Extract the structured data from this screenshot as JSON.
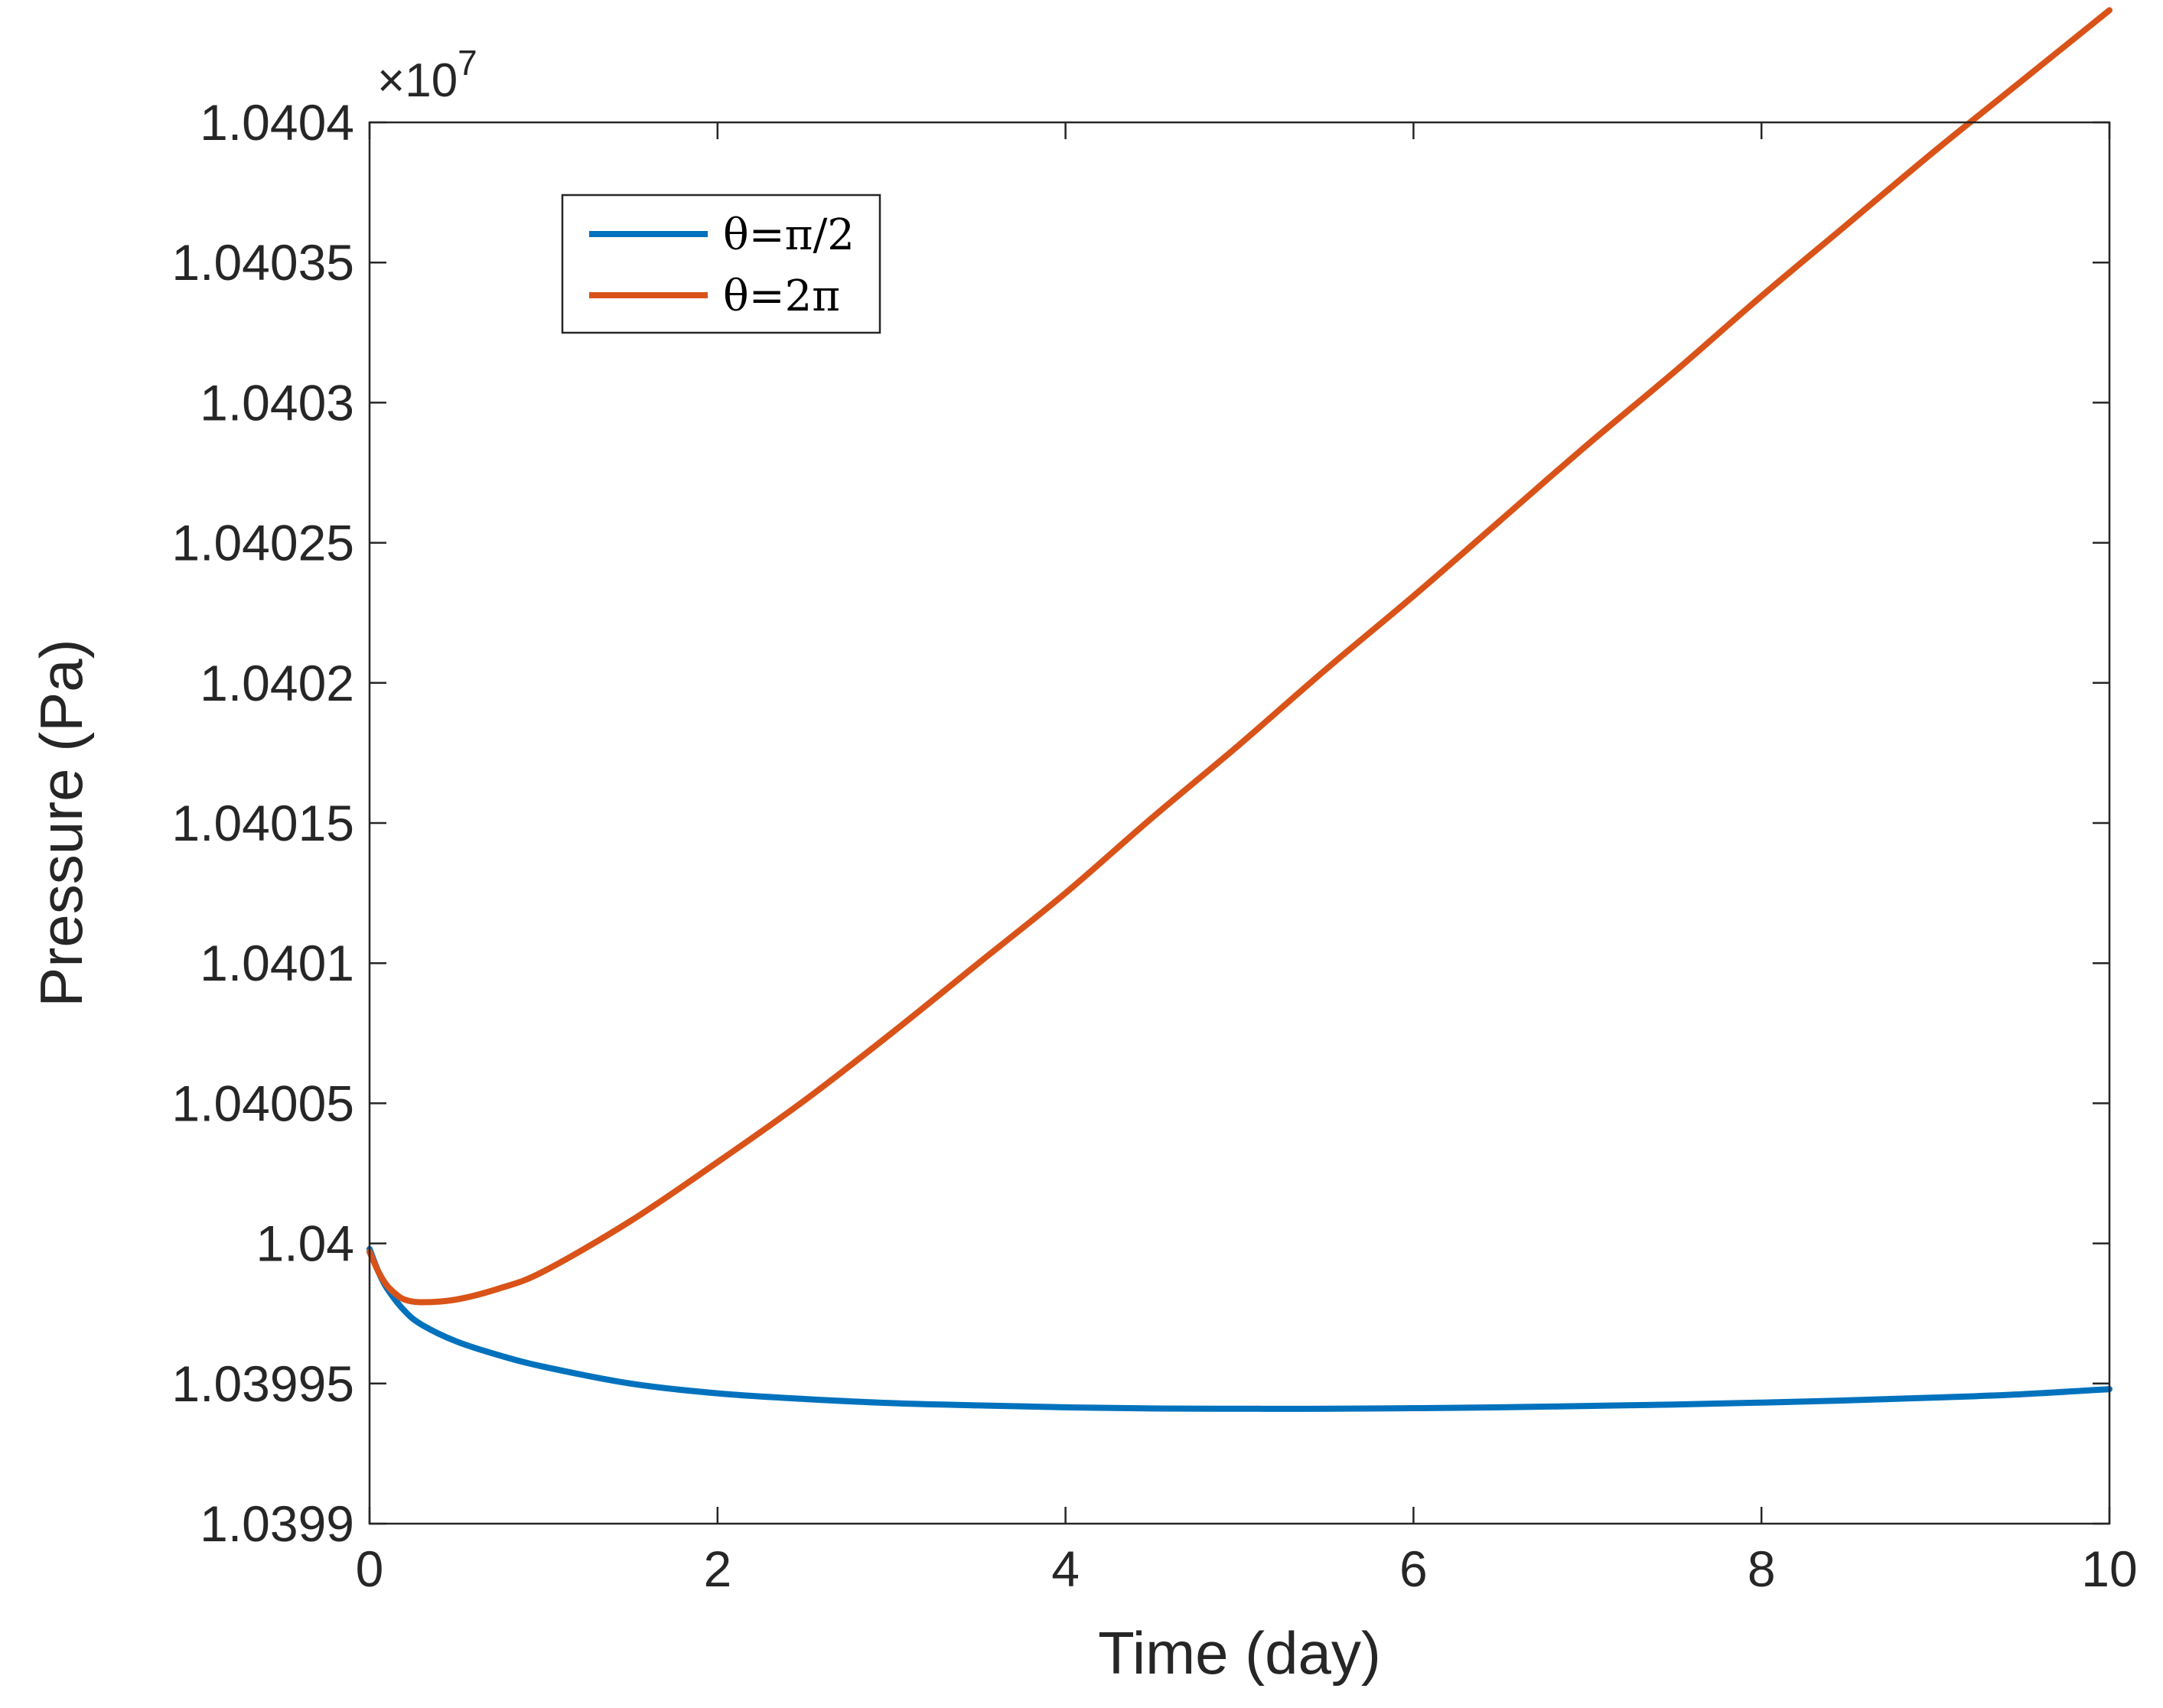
{
  "chart_data": {
    "type": "line",
    "title": "",
    "xlabel": "Time (day)",
    "ylabel": "Pressure (Pa)",
    "y_exponent_label": "×10",
    "y_exponent_power": "7",
    "xlim": [
      0,
      10
    ],
    "ylim": [
      10399000,
      10404000
    ],
    "x_ticks": [
      0,
      2,
      4,
      6,
      8,
      10
    ],
    "x_tick_labels": [
      "0",
      "2",
      "4",
      "6",
      "8",
      "10"
    ],
    "y_ticks": [
      10399000,
      10399500,
      10400000,
      10400500,
      10401000,
      10401500,
      10402000,
      10402500,
      10403000,
      10403500,
      10404000
    ],
    "y_tick_labels": [
      "1.0399",
      "1.03995",
      "1.04",
      "1.04005",
      "1.0401",
      "1.04015",
      "1.0402",
      "1.04025",
      "1.0403",
      "1.04035",
      "1.0404"
    ],
    "grid": false,
    "legend_position": "top-left",
    "series": [
      {
        "name": "θ=π/2",
        "color": "#0072BD",
        "x": [
          0,
          0.05,
          0.1,
          0.2,
          0.3,
          0.5,
          0.75,
          1,
          1.5,
          2,
          2.5,
          3,
          3.5,
          4,
          4.5,
          5,
          5.5,
          6,
          6.5,
          7,
          7.5,
          8,
          8.5,
          9,
          9.5,
          10
        ],
        "y": [
          10399980,
          10399900,
          10399840,
          10399760,
          10399710,
          10399650,
          10399600,
          10399560,
          10399500,
          10399465,
          10399445,
          10399430,
          10399422,
          10399415,
          10399411,
          10399410,
          10399410,
          10399412,
          10399415,
          10399420,
          10399425,
          10399432,
          10399440,
          10399450,
          10399462,
          10399480
        ]
      },
      {
        "name": "θ=2π",
        "color": "#D95319",
        "x": [
          0,
          0.05,
          0.1,
          0.15,
          0.2,
          0.3,
          0.5,
          0.75,
          1,
          1.5,
          2,
          2.5,
          3,
          3.5,
          4,
          4.5,
          5,
          5.5,
          6,
          6.5,
          7,
          7.5,
          8,
          8.5,
          9,
          9.5,
          10
        ],
        "y": [
          10399970,
          10399900,
          10399850,
          10399820,
          10399800,
          10399790,
          10399800,
          10399840,
          10399900,
          10400080,
          10400290,
          10400510,
          10400750,
          10401000,
          10401250,
          10401520,
          10401780,
          10402050,
          10402310,
          10402580,
          10402850,
          10403110,
          10403380,
          10403640,
          10403900,
          10404150,
          10404400
        ]
      }
    ]
  }
}
